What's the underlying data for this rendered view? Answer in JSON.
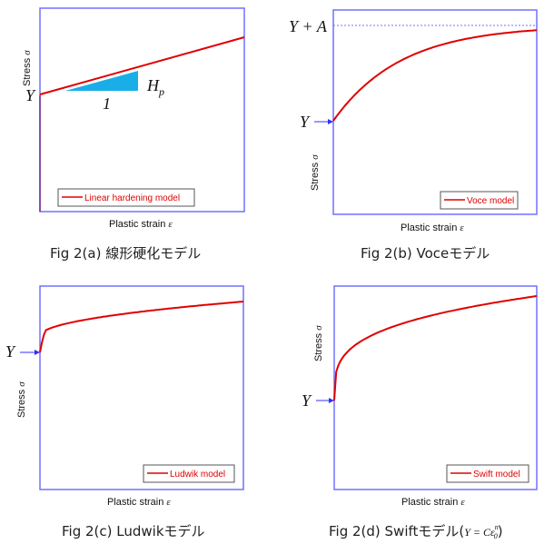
{
  "colors": {
    "frame": "#7070ff",
    "curve": "#e00000",
    "triangle": "#19aee8",
    "arrow": "#3030ff",
    "yield_line": "#7a2a8a"
  },
  "common": {
    "xlabel": "Plastic strain",
    "xlabel_symbol": "ε",
    "ylabel": "Stress",
    "ylabel_symbol": "σ"
  },
  "panels": [
    {
      "id": "a",
      "caption": "Fig 2(a) 線形硬化モデル",
      "legend": "Linear hardening model",
      "y_label": "Y",
      "slope_label": "H",
      "slope_sub": "p",
      "run_label": "1"
    },
    {
      "id": "b",
      "caption": "Fig 2(b) Voceモデル",
      "legend": "Voce model",
      "y_label": "Y",
      "asymptote_label": "Y + A"
    },
    {
      "id": "c",
      "caption": "Fig 2(c) Ludwikモデル",
      "legend": "Ludwik model",
      "y_label": "Y"
    },
    {
      "id": "d",
      "caption": "Fig 2(d) Swiftモデル",
      "caption_formula": "Y = Cε",
      "formula_sup": "n",
      "formula_sub": "0",
      "legend": "Swift model",
      "y_label": "Y"
    }
  ]
}
